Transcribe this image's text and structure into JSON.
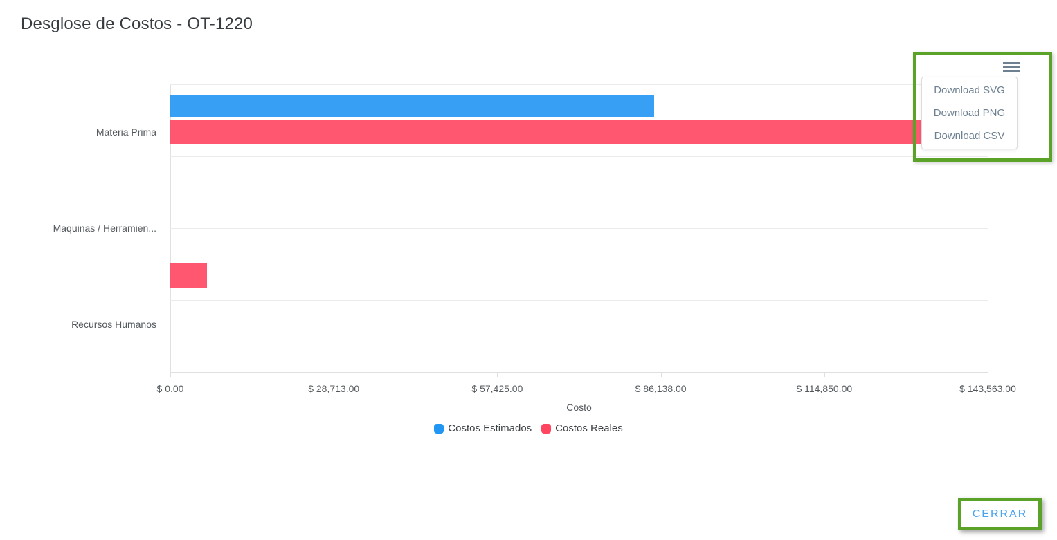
{
  "dialog": {
    "title": "Desglose de Costos - OT-1220",
    "close_label": "CERRAR"
  },
  "toolbar_menu": {
    "icon": "hamburger-menu-icon",
    "items": [
      "Download SVG",
      "Download PNG",
      "Download CSV"
    ]
  },
  "chart_data": {
    "type": "bar",
    "orientation": "horizontal",
    "categories": [
      "Materia Prima",
      "Maquinas / Herramien...",
      "Recursos Humanos"
    ],
    "series": [
      {
        "name": "Costos Estimados",
        "color": "#2196F3",
        "values": [
          85000,
          0,
          0
        ]
      },
      {
        "name": "Costos Reales",
        "color": "#FF4560",
        "values": [
          143562.5,
          0,
          6400
        ]
      }
    ],
    "xlabel": "Costo",
    "xlim": [
      0,
      143562.5
    ],
    "x_tick_labels": [
      "$ 0.00",
      "$ 28,713.00",
      "$ 57,425.00",
      "$ 86,138.00",
      "$ 114,850.00",
      "$ 143,563.00"
    ],
    "grid": "horizontal-light",
    "legend_position": "bottom"
  },
  "annotations": {
    "highlight_color": "#5ba228"
  }
}
